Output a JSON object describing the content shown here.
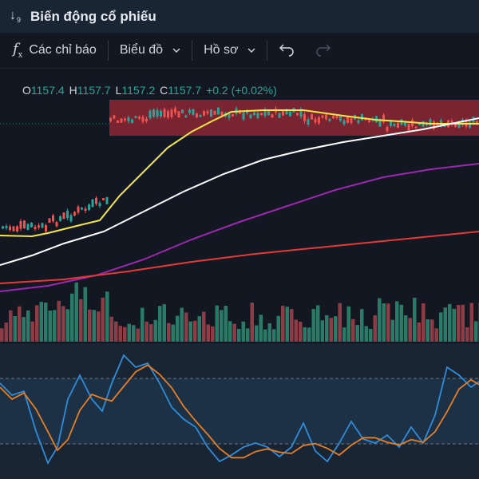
{
  "window": {
    "title": "Biến động cổ phiếu",
    "icon": "sort-down-icon",
    "icon_label": "9"
  },
  "toolbar": {
    "indicators_label": "Các chỉ báo",
    "indicators_icon": "fx-icon",
    "chart_label": "Biểu đồ",
    "profile_label": "Hồ sơ",
    "undo_icon": "undo-icon",
    "redo_icon": "redo-icon"
  },
  "ohlc": {
    "o_label": "O",
    "o": "1157.4",
    "h_label": "H",
    "h": "1157.7",
    "l_label": "L",
    "l": "1157.2",
    "c_label": "C",
    "c": "1157.7",
    "change": "+0.2 (+0.02%)"
  },
  "colors": {
    "up": "#26a69a",
    "down": "#ef5350",
    "up_volume": "#2a7a68",
    "down_volume": "#8e3c45",
    "ma_fast": "#f5e642",
    "ma_mid": "#ffffff",
    "ma_slow": "#9c27b0",
    "ma_long": "#e53935",
    "osc_k": "#2f8cd9",
    "osc_d": "#e67e22",
    "highlight": "#9c2a35"
  }
}
